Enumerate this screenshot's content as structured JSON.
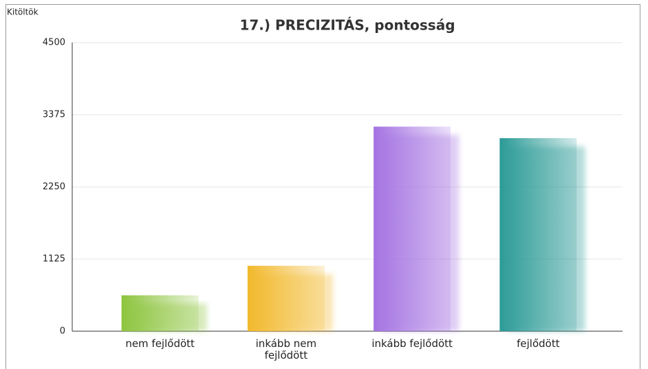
{
  "chart_data": {
    "type": "bar",
    "title": "17.) PRECIZITÁS, pontosság",
    "y_label": "Kitöltök",
    "categories": [
      "nem fejlődött",
      "inkább nem fejlődött",
      "inkább fejlődött",
      "fejlődött"
    ],
    "values": [
      560,
      1020,
      3190,
      3010
    ],
    "colors": [
      "#8cc43c",
      "#f2b82a",
      "#a472e2",
      "#2a9a96"
    ],
    "ylim": [
      0,
      4500
    ],
    "yticks": [
      0,
      1125,
      2250,
      3375,
      4500
    ],
    "grid": true
  }
}
